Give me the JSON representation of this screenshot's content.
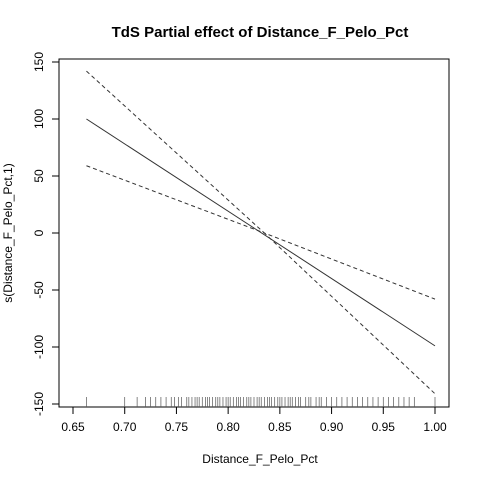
{
  "chart_data": {
    "type": "line",
    "title": "TdS Partial effect of Distance_F_Pelo_Pct",
    "xlabel": "Distance_F_Pelo_Pct",
    "ylabel": "s(Distance_F_Pelo_Pct,1)",
    "xlim": [
      0.65,
      1.0
    ],
    "ylim": [
      -150,
      150
    ],
    "xticks": [
      "0.65",
      "0.70",
      "0.75",
      "0.80",
      "0.85",
      "0.90",
      "0.95",
      "1.00"
    ],
    "yticks": [
      "-150",
      "-100",
      "-50",
      "0",
      "50",
      "100",
      "150"
    ],
    "grid": false,
    "series": [
      {
        "role": "fit",
        "style": "solid",
        "x": [
          0.663,
          1.0
        ],
        "y": [
          100,
          -99
        ]
      },
      {
        "role": "upper",
        "style": "dashed",
        "x": [
          0.663,
          0.835,
          1.0
        ],
        "y": [
          142,
          0,
          -58
        ]
      },
      {
        "role": "lower",
        "style": "dashed",
        "x": [
          0.663,
          0.835,
          1.0
        ],
        "y": [
          59,
          0,
          -141
        ]
      }
    ],
    "rug": [
      0.663,
      0.7,
      0.712,
      0.72,
      0.725,
      0.73,
      0.735,
      0.74,
      0.745,
      0.748,
      0.752,
      0.755,
      0.76,
      0.762,
      0.765,
      0.768,
      0.77,
      0.772,
      0.775,
      0.778,
      0.78,
      0.782,
      0.785,
      0.788,
      0.79,
      0.792,
      0.795,
      0.798,
      0.8,
      0.802,
      0.805,
      0.808,
      0.81,
      0.812,
      0.815,
      0.818,
      0.82,
      0.822,
      0.825,
      0.828,
      0.83,
      0.832,
      0.835,
      0.838,
      0.84,
      0.842,
      0.845,
      0.848,
      0.85,
      0.852,
      0.855,
      0.858,
      0.86,
      0.862,
      0.865,
      0.868,
      0.87,
      0.875,
      0.878,
      0.88,
      0.885,
      0.888,
      0.89,
      0.895,
      0.9,
      0.905,
      0.91,
      0.915,
      0.92,
      0.925,
      0.93,
      0.935,
      0.94,
      0.945,
      0.95,
      0.955,
      0.96,
      0.965,
      0.97,
      0.975,
      0.98,
      1.0
    ]
  }
}
